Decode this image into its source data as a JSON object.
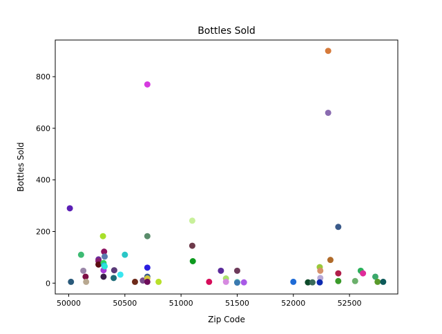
{
  "chart_data": {
    "type": "scatter",
    "title": "Bottles Sold",
    "xlabel": "Zip Code",
    "ylabel": "Bottles Sold",
    "xlim": [
      49880,
      52930
    ],
    "ylim": [
      -42,
      942
    ],
    "xticks": [
      {
        "value": 50000,
        "label": "50000"
      },
      {
        "value": 50500,
        "label": "50500"
      },
      {
        "value": 51000,
        "label": "51000"
      },
      {
        "value": 51500,
        "label": "51500"
      },
      {
        "value": 52000,
        "label": "52000"
      },
      {
        "value": 52500,
        "label": "52500"
      }
    ],
    "yticks": [
      {
        "value": 0,
        "label": "0"
      },
      {
        "value": 200,
        "label": "200"
      },
      {
        "value": 400,
        "label": "400"
      },
      {
        "value": 600,
        "label": "600"
      },
      {
        "value": 800,
        "label": "800"
      }
    ],
    "grid": false,
    "points": [
      {
        "x": 50010,
        "y": 290,
        "color": "#5b1fb5"
      },
      {
        "x": 50020,
        "y": 5,
        "color": "#2a5a7a"
      },
      {
        "x": 50110,
        "y": 110,
        "color": "#3dbb73"
      },
      {
        "x": 50130,
        "y": 48,
        "color": "#9a86a8"
      },
      {
        "x": 50150,
        "y": 25,
        "color": "#7d0f45"
      },
      {
        "x": 50155,
        "y": 5,
        "color": "#b8a890"
      },
      {
        "x": 50265,
        "y": 92,
        "color": "#6d2a9a"
      },
      {
        "x": 50265,
        "y": 85,
        "color": "#8a1e6d"
      },
      {
        "x": 50265,
        "y": 72,
        "color": "#5c0d12"
      },
      {
        "x": 50305,
        "y": 182,
        "color": "#a8e02a"
      },
      {
        "x": 50315,
        "y": 122,
        "color": "#8c1260"
      },
      {
        "x": 50320,
        "y": 103,
        "color": "#5a7ab0"
      },
      {
        "x": 50310,
        "y": 78,
        "color": "#2ad65c"
      },
      {
        "x": 50315,
        "y": 68,
        "color": "#2ab0e0"
      },
      {
        "x": 50310,
        "y": 50,
        "color": "#a83ad6"
      },
      {
        "x": 50320,
        "y": 65,
        "color": "#2ae6d6"
      },
      {
        "x": 50310,
        "y": 25,
        "color": "#3a1e4a"
      },
      {
        "x": 50405,
        "y": 50,
        "color": "#5a3a78"
      },
      {
        "x": 50400,
        "y": 20,
        "color": "#1d6b78"
      },
      {
        "x": 50460,
        "y": 33,
        "color": "#3ae6f0"
      },
      {
        "x": 50500,
        "y": 110,
        "color": "#2ac6c6"
      },
      {
        "x": 50590,
        "y": 5,
        "color": "#6d2a1a"
      },
      {
        "x": 50660,
        "y": 10,
        "color": "#7a4a8a"
      },
      {
        "x": 50700,
        "y": 770,
        "color": "#d63ae0"
      },
      {
        "x": 50700,
        "y": 182,
        "color": "#5a8c6b"
      },
      {
        "x": 50700,
        "y": 60,
        "color": "#2a1ee0"
      },
      {
        "x": 50700,
        "y": 25,
        "color": "#3a5a8a"
      },
      {
        "x": 50700,
        "y": 18,
        "color": "#d6c83a"
      },
      {
        "x": 50700,
        "y": 5,
        "color": "#6d0d5a"
      },
      {
        "x": 50800,
        "y": 5,
        "color": "#b8e02a"
      },
      {
        "x": 51100,
        "y": 242,
        "color": "#c8f09a"
      },
      {
        "x": 51100,
        "y": 145,
        "color": "#6d3a4a"
      },
      {
        "x": 51105,
        "y": 85,
        "color": "#0d9a1e"
      },
      {
        "x": 51250,
        "y": 5,
        "color": "#d60d5a"
      },
      {
        "x": 51355,
        "y": 48,
        "color": "#5a2a9a"
      },
      {
        "x": 51400,
        "y": 18,
        "color": "#a8e06b"
      },
      {
        "x": 51400,
        "y": 5,
        "color": "#d68ae0"
      },
      {
        "x": 51500,
        "y": 48,
        "color": "#6d3a5a"
      },
      {
        "x": 51500,
        "y": 5,
        "color": "#9ae0c8"
      },
      {
        "x": 51500,
        "y": 2,
        "color": "#3a7ab0"
      },
      {
        "x": 51560,
        "y": 3,
        "color": "#a85ae6"
      },
      {
        "x": 52000,
        "y": 5,
        "color": "#1e6bd6"
      },
      {
        "x": 52130,
        "y": 3,
        "color": "#0d4a2a"
      },
      {
        "x": 52170,
        "y": 3,
        "color": "#3a6b5a"
      },
      {
        "x": 52235,
        "y": 62,
        "color": "#9ac83a"
      },
      {
        "x": 52240,
        "y": 48,
        "color": "#d6906b"
      },
      {
        "x": 52240,
        "y": 20,
        "color": "#b8a8d6"
      },
      {
        "x": 52235,
        "y": 3,
        "color": "#0d2ab0"
      },
      {
        "x": 52310,
        "y": 900,
        "color": "#d67a3a"
      },
      {
        "x": 52310,
        "y": 660,
        "color": "#8a6bb0"
      },
      {
        "x": 52330,
        "y": 90,
        "color": "#b06b2a"
      },
      {
        "x": 52400,
        "y": 218,
        "color": "#3a5a8a"
      },
      {
        "x": 52400,
        "y": 38,
        "color": "#b01e4a"
      },
      {
        "x": 52400,
        "y": 8,
        "color": "#3a9a2a"
      },
      {
        "x": 52550,
        "y": 8,
        "color": "#6bb06b"
      },
      {
        "x": 52600,
        "y": 48,
        "color": "#2ab05a"
      },
      {
        "x": 52620,
        "y": 38,
        "color": "#e02a9a"
      },
      {
        "x": 52730,
        "y": 25,
        "color": "#3aa86b"
      },
      {
        "x": 52750,
        "y": 5,
        "color": "#5a9a2a"
      },
      {
        "x": 52800,
        "y": 5,
        "color": "#0d5a5a"
      }
    ]
  }
}
